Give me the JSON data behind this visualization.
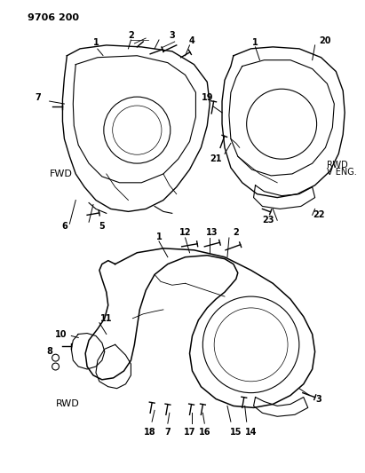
{
  "title": "9706 200",
  "bg_color": "#ffffff",
  "line_color": "#000000",
  "label_color": "#000000",
  "fig_width": 4.11,
  "fig_height": 5.33,
  "dpi": 100,
  "labels": {
    "title": "9706 200",
    "fwd1": "FWD",
    "rwd1": "RWD",
    "rwd2": "RWD",
    "rwd_veng": "RWD\nV ENG."
  },
  "part_numbers_top_left": [
    "1",
    "2",
    "3",
    "4",
    "5",
    "6",
    "7"
  ],
  "part_numbers_top_right": [
    "1",
    "19",
    "20",
    "21",
    "22",
    "23"
  ],
  "part_numbers_bottom": [
    "1",
    "2",
    "3",
    "7",
    "8",
    "10",
    "11",
    "12",
    "13",
    "14",
    "15",
    "16",
    "17",
    "18"
  ]
}
